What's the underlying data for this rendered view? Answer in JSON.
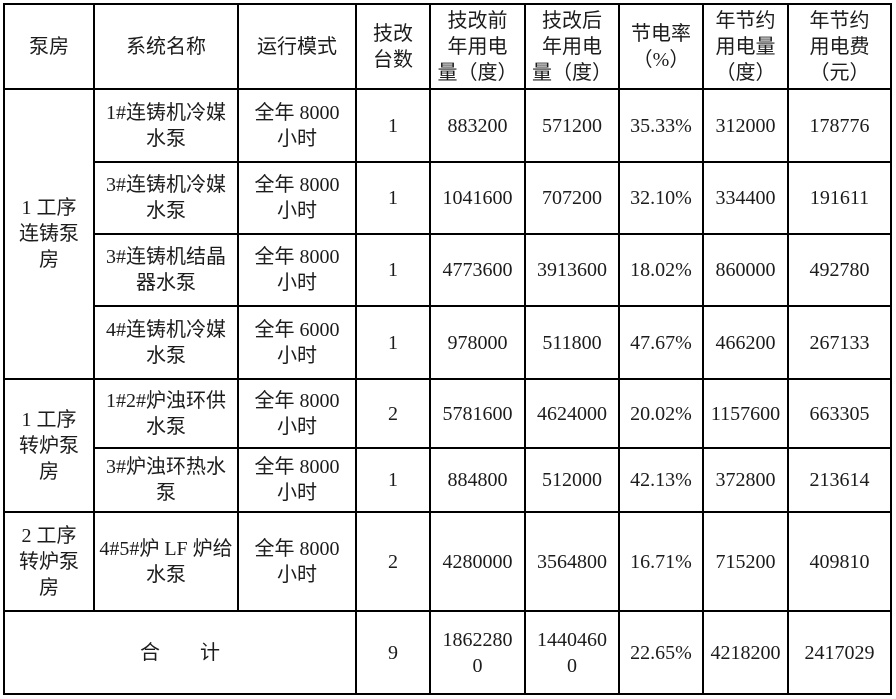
{
  "table": {
    "columns": [
      {
        "key": "pump_house",
        "label": "泵房"
      },
      {
        "key": "system_name",
        "label": "系统名称"
      },
      {
        "key": "mode",
        "label": "运行模式"
      },
      {
        "key": "units",
        "label": "技改\n台数"
      },
      {
        "key": "before_kwh",
        "label": "技改前\n年用电\n量（度）"
      },
      {
        "key": "after_kwh",
        "label": "技改后\n年用电\n量（度）"
      },
      {
        "key": "saving_rate",
        "label": "节电率\n（%）"
      },
      {
        "key": "saved_kwh",
        "label": "年节约\n用电量\n（度）"
      },
      {
        "key": "saved_cost",
        "label": "年节约\n用电费\n（元）"
      }
    ],
    "groups": [
      {
        "name": "1 工序\n连铸泵\n房",
        "rows": [
          {
            "system": "1#连铸机冷媒\n水泵",
            "mode": "全年 8000\n小时",
            "units": "1",
            "before": "883200",
            "after": "571200",
            "rate": "35.33%",
            "saved_kwh": "312000",
            "saved_cost": "178776"
          },
          {
            "system": "3#连铸机冷媒\n水泵",
            "mode": "全年 8000\n小时",
            "units": "1",
            "before": "1041600",
            "after": "707200",
            "rate": "32.10%",
            "saved_kwh": "334400",
            "saved_cost": "191611"
          },
          {
            "system": "3#连铸机结晶\n器水泵",
            "mode": "全年 8000\n小时",
            "units": "1",
            "before": "4773600",
            "after": "3913600",
            "rate": "18.02%",
            "saved_kwh": "860000",
            "saved_cost": "492780"
          },
          {
            "system": "4#连铸机冷媒\n水泵",
            "mode": "全年 6000\n小时",
            "units": "1",
            "before": "978000",
            "after": "511800",
            "rate": "47.67%",
            "saved_kwh": "466200",
            "saved_cost": "267133"
          }
        ]
      },
      {
        "name": "1 工序\n转炉泵\n房",
        "rows": [
          {
            "system": "1#2#炉浊环供\n水泵",
            "mode": "全年 8000\n小时",
            "units": "2",
            "before": "5781600",
            "after": "4624000",
            "rate": "20.02%",
            "saved_kwh": "1157600",
            "saved_cost": "663305"
          },
          {
            "system": "3#炉浊环热水\n泵",
            "mode": "全年 8000\n小时",
            "units": "1",
            "before": "884800",
            "after": "512000",
            "rate": "42.13%",
            "saved_kwh": "372800",
            "saved_cost": "213614"
          }
        ]
      },
      {
        "name": "2 工序\n转炉泵\n房",
        "rows": [
          {
            "system": "4#5#炉 LF 炉给\n水泵",
            "mode": "全年 8000\n小时",
            "units": "2",
            "before": "4280000",
            "after": "3564800",
            "rate": "16.71%",
            "saved_kwh": "715200",
            "saved_cost": "409810"
          }
        ]
      }
    ],
    "total": {
      "label": "合　　计",
      "units": "9",
      "before": "1862280\n0",
      "after": "1440460\n0",
      "rate": "22.65%",
      "saved_kwh": "4218200",
      "saved_cost": "2417029"
    }
  }
}
